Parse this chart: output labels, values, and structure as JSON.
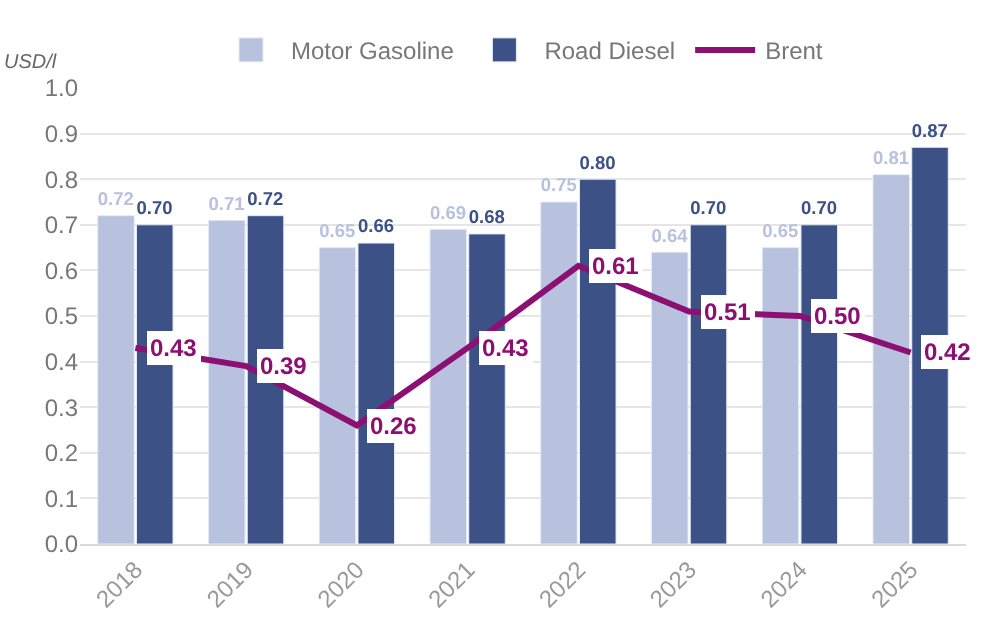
{
  "chart_data": {
    "type": "bar",
    "ylabel": "USD/l",
    "categories": [
      "2018",
      "2019",
      "2020",
      "2021",
      "2022",
      "2023",
      "2024",
      "2025"
    ],
    "series": [
      {
        "name": "Motor Gasoline",
        "color": "#b8c2de",
        "values": [
          0.72,
          0.71,
          0.65,
          0.69,
          0.75,
          0.64,
          0.65,
          0.81
        ],
        "value_labels": [
          "0.72",
          "0.71",
          "0.65",
          "0.69",
          "0.75",
          "0.64",
          "0.65",
          "0.81"
        ]
      },
      {
        "name": "Road Diesel",
        "color": "#3c5186",
        "values": [
          0.7,
          0.72,
          0.66,
          0.68,
          0.8,
          0.7,
          0.7,
          0.87
        ],
        "value_labels": [
          "0.70",
          "0.72",
          "0.66",
          "0.68",
          "0.80",
          "0.70",
          "0.70",
          "0.87"
        ]
      },
      {
        "name": "Brent",
        "type": "line",
        "color": "#8c0f72",
        "values": [
          0.43,
          0.39,
          0.26,
          0.43,
          0.61,
          0.51,
          0.5,
          0.42
        ],
        "value_labels": [
          "0.43",
          "0.39",
          "0.26",
          "0.43",
          "0.61",
          "0.51",
          "0.50",
          "0.42"
        ]
      }
    ],
    "ylim": [
      0,
      1.0
    ],
    "yticks": [
      {
        "value": 0,
        "label": "0.0"
      },
      {
        "value": 0.1,
        "label": "0.1"
      },
      {
        "value": 0.2,
        "label": "0.2"
      },
      {
        "value": 0.3,
        "label": "0.3"
      },
      {
        "value": 0.4,
        "label": "0.4"
      },
      {
        "value": 0.5,
        "label": "0.5"
      },
      {
        "value": 0.6,
        "label": "0.6"
      },
      {
        "value": 0.7,
        "label": "0.7"
      },
      {
        "value": 0.8,
        "label": "0.8"
      },
      {
        "value": 0.9,
        "label": "0.9"
      },
      {
        "value": 1.0,
        "label": "1.0"
      }
    ],
    "grid": "y",
    "legend": "top",
    "marker": "none",
    "line_style": "solid"
  }
}
